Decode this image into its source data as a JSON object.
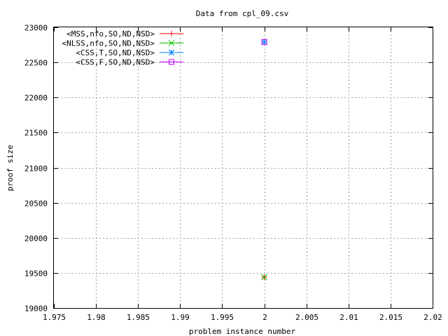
{
  "chart_data": {
    "type": "scatter",
    "title": "Data from cpl_09.csv",
    "xlabel": "problem instance number",
    "ylabel": "proof size",
    "xlim": [
      1.975,
      2.02
    ],
    "ylim": [
      19000,
      23000
    ],
    "x_ticks": [
      1.975,
      1.98,
      1.985,
      1.99,
      1.995,
      2,
      2.005,
      2.01,
      2.015,
      2.02
    ],
    "x_tick_labels": [
      "1.975",
      "1.98",
      "1.985",
      "1.99",
      "1.995",
      "2",
      "2.005",
      "2.01",
      "2.015",
      "2.02"
    ],
    "y_ticks": [
      19000,
      19500,
      20000,
      20500,
      21000,
      21500,
      22000,
      22500,
      23000
    ],
    "y_tick_labels": [
      "19000",
      "19500",
      "20000",
      "20500",
      "21000",
      "21500",
      "22000",
      "22500",
      "23000"
    ],
    "grid": true,
    "legend_position": "top-left",
    "series": [
      {
        "name": "<MSS,nfo,SO,ND,NSD>",
        "marker": "plus",
        "color": "#ff0000",
        "points": [
          [
            2,
            19440
          ]
        ]
      },
      {
        "name": "<NLSS,nfo,SO,ND,NSD>",
        "marker": "cross",
        "color": "#00c000",
        "points": [
          [
            2,
            19440
          ]
        ]
      },
      {
        "name": "<CSS,T,SO,ND,NSD>",
        "marker": "star",
        "color": "#0080ff",
        "points": [
          [
            2,
            22790
          ]
        ]
      },
      {
        "name": "<CSS,F,SO,ND,NSD>",
        "marker": "square",
        "color": "#c000ff",
        "points": [
          [
            2,
            22790
          ]
        ]
      }
    ]
  }
}
